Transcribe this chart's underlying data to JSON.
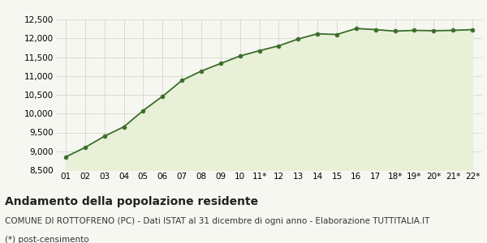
{
  "x_labels": [
    "01",
    "02",
    "03",
    "04",
    "05",
    "06",
    "07",
    "08",
    "09",
    "10",
    "11*",
    "12",
    "13",
    "14",
    "15",
    "16",
    "17",
    "18*",
    "19*",
    "20*",
    "21*",
    "22*"
  ],
  "y_values": [
    8850,
    9100,
    9400,
    9650,
    10080,
    10460,
    10880,
    11130,
    11330,
    11530,
    11670,
    11800,
    11980,
    12120,
    12100,
    12260,
    12230,
    12190,
    12210,
    12200,
    12210,
    12230
  ],
  "line_color": "#3a6e28",
  "fill_color": "#e8f0d8",
  "marker_color": "#3a6e28",
  "bg_color": "#f7f7f2",
  "grid_color": "#d0d0c8",
  "ylim": [
    8500,
    12500
  ],
  "yticks": [
    8500,
    9000,
    9500,
    10000,
    10500,
    11000,
    11500,
    12000,
    12500
  ],
  "title": "Andamento della popolazione residente",
  "subtitle": "COMUNE DI ROTTOFRENO (PC) - Dati ISTAT al 31 dicembre di ogni anno - Elaborazione TUTTITALIA.IT",
  "footnote": "(*) post-censimento",
  "title_fontsize": 10,
  "subtitle_fontsize": 7.5,
  "footnote_fontsize": 7.5,
  "tick_fontsize": 7.5
}
